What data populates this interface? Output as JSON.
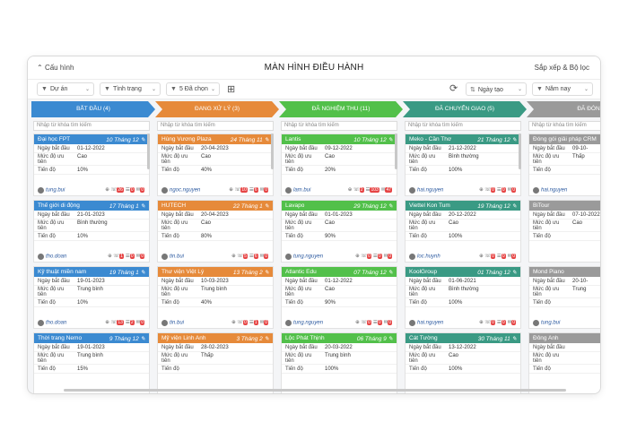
{
  "header": {
    "config_label": "Cấu hình",
    "title": "MÀN HÌNH ĐIỀU HÀNH",
    "sort_filter_label": "Sắp xếp & Bộ lọc"
  },
  "filters": {
    "project": "Dự án",
    "status": "Tình trạng",
    "selected": "5 Đã chọn",
    "date_type": "Ngày tạo",
    "period": "Năm nay"
  },
  "search_placeholder": "Nhập từ khóa tìm kiếm",
  "field_labels": {
    "start_date": "Ngày bắt đầu",
    "priority_1": "Mức độ ưu",
    "priority_2": "tiên",
    "progress": "Tiến độ"
  },
  "colors": {
    "blue": "#3b8ad1",
    "orange": "#e68a3a",
    "green": "#52c04a",
    "teal": "#3a9a84",
    "gray": "#9a9a9a"
  },
  "stages": [
    {
      "label": "BẮT ĐẦU (4)",
      "color": "#3b8ad1"
    },
    {
      "label": "ĐANG XỬ LÝ (3)",
      "color": "#e68a3a"
    },
    {
      "label": "ĐÃ NGHIỆM THU (11)",
      "color": "#52c04a"
    },
    {
      "label": "ĐÃ CHUYỂN GIAO (5)",
      "color": "#3a9a84"
    },
    {
      "label": "ĐÃ ĐÓN",
      "color": "#9a9a9a"
    }
  ],
  "columns": [
    {
      "color": "#3b8ad1",
      "cards": [
        {
          "name": "Đại học FPT",
          "date": "10 Tháng 12",
          "start": "01-12-2022",
          "priority": "Cao",
          "progress": "10%",
          "user": "tung.bui",
          "b1": "26",
          "b2": "0",
          "b3": "0"
        },
        {
          "name": "Thế giới di động",
          "date": "17 Tháng 1",
          "start": "21-01-2023",
          "priority": "Bình thường",
          "progress": "10%",
          "user": "tho.doan",
          "b1": "1",
          "b2": "0",
          "b3": "0"
        },
        {
          "name": "Kỹ thuật miền nam",
          "date": "19 Tháng 1",
          "start": "19-01-2023",
          "priority": "Trung bình",
          "progress": "10%",
          "user": "tho.doan",
          "b1": "13",
          "b2": "2",
          "b3": "0"
        },
        {
          "name": "Thời trang Nemo",
          "date": "9 Tháng 12",
          "start": "19-01-2023",
          "priority": "Trung bình",
          "progress": "15%",
          "user": "",
          "b1": "",
          "b2": "",
          "b3": ""
        }
      ]
    },
    {
      "color": "#e68a3a",
      "cards": [
        {
          "name": "Hùng Vương Plaza",
          "date": "24 Tháng 11",
          "start": "20-04-2023",
          "priority": "Cao",
          "progress": "40%",
          "user": "ngoc.nguyen",
          "b1": "10",
          "b2": "6",
          "b3": "0"
        },
        {
          "name": "HUTECH",
          "date": "22 Tháng 1",
          "start": "20-04-2023",
          "priority": "Cao",
          "progress": "80%",
          "user": "tin.bui",
          "b1": "5",
          "b2": "6",
          "b3": "0"
        },
        {
          "name": "Thư viện Việt Lý",
          "date": "13 Tháng 2",
          "start": "10-03-2023",
          "priority": "Trung bình",
          "progress": "40%",
          "user": "tin.bui",
          "b1": "0",
          "b2": "1",
          "b3": "0"
        },
        {
          "name": "Mỹ viện Linh Anh",
          "date": "3 Tháng 2",
          "start": "28-02-2023",
          "priority": "Thấp",
          "progress": "",
          "user": "",
          "b1": "",
          "b2": "",
          "b3": ""
        }
      ]
    },
    {
      "color": "#52c04a",
      "cards": [
        {
          "name": "Lantis",
          "date": "10 Tháng 12",
          "start": "09-12-2022",
          "priority": "Cao",
          "progress": "20%",
          "user": "lam.bui",
          "b1": "2",
          "b2": "103",
          "b3": "47"
        },
        {
          "name": "Lavapo",
          "date": "29 Tháng 12",
          "start": "01-01-2023",
          "priority": "Cao",
          "progress": "90%",
          "user": "tung.nguyen",
          "b1": "0",
          "b2": "0",
          "b3": "0"
        },
        {
          "name": "Atlantic Edu",
          "date": "07 Tháng 12",
          "start": "01-12-2022",
          "priority": "Cao",
          "progress": "90%",
          "user": "tung.nguyen",
          "b1": "0",
          "b2": "0",
          "b3": "0"
        },
        {
          "name": "Lộc Phát Thịnh",
          "date": "06 Tháng 9",
          "start": "20-03-2022",
          "priority": "Trung bình",
          "progress": "100%",
          "user": "",
          "b1": "",
          "b2": "",
          "b3": ""
        }
      ]
    },
    {
      "color": "#3a9a84",
      "cards": [
        {
          "name": "Meko - Cần Thơ",
          "date": "21 Tháng 12",
          "start": "21-12-2022",
          "priority": "Bình thường",
          "progress": "100%",
          "user": "hai.nguyen",
          "b1": "0",
          "b2": "0",
          "b3": "0"
        },
        {
          "name": "Viettel Kon Tum",
          "date": "19 Tháng 12",
          "start": "20-12-2022",
          "priority": "Cao",
          "progress": "100%",
          "user": "loc.huynh",
          "b1": "0",
          "b2": "0",
          "b3": "0"
        },
        {
          "name": "KoolGroup",
          "date": "01 Tháng 12",
          "start": "01-06-2021",
          "priority": "Bình thường",
          "progress": "100%",
          "user": "hai.nguyen",
          "b1": "0",
          "b2": "0",
          "b3": "0"
        },
        {
          "name": "Cát Tường",
          "date": "30 Tháng 11",
          "start": "13-12-2022",
          "priority": "Cao",
          "progress": "100%",
          "user": "",
          "b1": "",
          "b2": "",
          "b3": ""
        }
      ]
    },
    {
      "color": "#9a9a9a",
      "cards": [
        {
          "name": "Đóng gói giải pháp CRM",
          "date": "",
          "start": "09-10-",
          "priority": "Thấp",
          "progress": "",
          "user": "hai.nguyen",
          "b1": "",
          "b2": "",
          "b3": ""
        },
        {
          "name": "BiTour",
          "date": "",
          "start": "07-10-2022",
          "priority": "Cao",
          "progress": "",
          "user": "",
          "b1": "",
          "b2": "",
          "b3": ""
        },
        {
          "name": "Mond Piano",
          "date": "",
          "start": "20-10-",
          "priority": "Trung",
          "progress": "",
          "user": "tung.bui",
          "b1": "",
          "b2": "",
          "b3": ""
        },
        {
          "name": "Đông Anh",
          "date": "",
          "start": "",
          "priority": "",
          "progress": "",
          "user": "",
          "b1": "",
          "b2": "",
          "b3": ""
        }
      ]
    }
  ]
}
